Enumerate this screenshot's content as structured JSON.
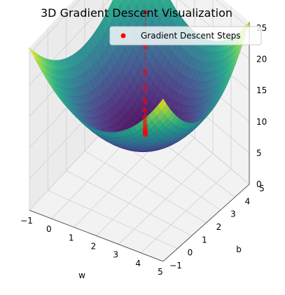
{
  "chart_data": {
    "type": "surface3d",
    "title": "3D Gradient Descent Visualization",
    "xlabel": "w",
    "ylabel": "b",
    "zlabel": "",
    "x_ticks": [
      "−1",
      "0",
      "1",
      "2",
      "3",
      "4",
      "5"
    ],
    "y_ticks": [
      "−1",
      "0",
      "1",
      "2",
      "3",
      "4",
      "5"
    ],
    "z_ticks": [
      "0",
      "5",
      "10",
      "15",
      "20",
      "25"
    ],
    "xlim": [
      -1,
      5
    ],
    "ylim": [
      -1,
      5
    ],
    "zlim": [
      0,
      26
    ],
    "surface": {
      "function": "(w - 2)^2 + (b - 2)^2 + 8",
      "colormap": "viridis",
      "alpha": 0.85
    },
    "grid": true,
    "legend_position": "top-right",
    "series": [
      {
        "name": "Gradient Descent Steps",
        "type": "scatter",
        "color": "#ff0000",
        "points": [
          {
            "w": 0.0,
            "b": 4.3,
            "z": 17.29
          },
          {
            "w": 0.4,
            "b": 3.84,
            "z": 13.95
          },
          {
            "w": 0.72,
            "b": 3.47,
            "z": 11.8
          },
          {
            "w": 0.98,
            "b": 3.18,
            "z": 10.43
          },
          {
            "w": 1.18,
            "b": 2.94,
            "z": 9.56
          },
          {
            "w": 1.34,
            "b": 2.75,
            "z": 9.0
          },
          {
            "w": 1.48,
            "b": 2.6,
            "z": 8.63
          },
          {
            "w": 1.58,
            "b": 2.48,
            "z": 8.41
          },
          {
            "w": 1.66,
            "b": 2.39,
            "z": 8.27
          },
          {
            "w": 1.73,
            "b": 2.31,
            "z": 8.17
          },
          {
            "w": 1.78,
            "b": 2.25,
            "z": 8.11
          },
          {
            "w": 1.83,
            "b": 2.2,
            "z": 8.07
          },
          {
            "w": 1.86,
            "b": 2.16,
            "z": 8.04
          },
          {
            "w": 1.89,
            "b": 2.13,
            "z": 8.03
          },
          {
            "w": 1.91,
            "b": 2.1,
            "z": 8.02
          },
          {
            "w": 1.93,
            "b": 2.08,
            "z": 8.01
          }
        ]
      }
    ]
  }
}
